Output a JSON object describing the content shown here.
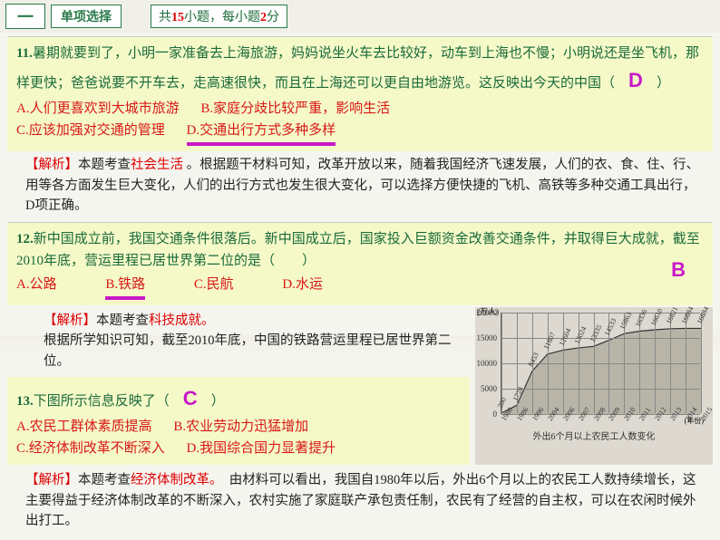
{
  "header": {
    "btn1": "一",
    "btn2": "单项选择",
    "info_pre": "共",
    "info_num": "15",
    "info_mid": "小题，每小题",
    "info_score": "2",
    "info_post": "分"
  },
  "q11": {
    "num": "11.",
    "text": "暑期就要到了，小明一家准备去上海旅游，妈妈说坐火车去比较好，动车到上海也不慢；小明说还是坐飞机，那样更快；爸爸说要不开车去，走高速很快，而且在上海还可以更自由地游览。这反映出今天的中国（",
    "text_close": "）",
    "answer": "D",
    "optA": "A.人们更喜欢到大城市旅游",
    "optB": "B.家庭分歧比较严重，影响生活",
    "optC": "C.应该加强对交通的管理",
    "optD": "D.交通出行方式多种多样"
  },
  "a11": {
    "tag": "【解析】",
    "t1": "本题考查",
    "topic": "社会生活",
    "t2": " 。根据题干材料可知，改革开放以来，随着我国经济飞速发展，人们的衣、食、住、行、用等各方面发生巨大变化，人们的出行方式也发生很大变化，可以选择方便快捷的飞机、高铁等多种交通工具出行，D项正确。"
  },
  "q12": {
    "num": "12.",
    "text": "新中国成立前，我国交通条件很落后。新中国成立后，国家投入巨额资金改善交通条件，并取得巨大成就，截至2010年底，营运里程已居世界第二位的是（　　）",
    "answer": "B",
    "optA": "A.公路",
    "optB": "B.铁路",
    "optC": "C.民航",
    "optD": "D.水运"
  },
  "a12": {
    "tag": "【解析】",
    "t1": "本题考查",
    "topic": "科技成就。",
    "t2": "根据所学知识可知，截至2010年底，中国的铁路营运里程已居世界第二位。"
  },
  "q13": {
    "num": "13.",
    "text": "下图所示信息反映了（",
    "text_close": "）",
    "answer": "C",
    "optA": "A.农民工群体素质提高",
    "optB": "B.农业劳动力迅猛增加",
    "optC": "C.经济体制改革不断深入",
    "optD": "D.我国综合国力显著提升"
  },
  "a13": {
    "tag": "【解析】",
    "t1": "本题考查",
    "topic": "经济体制改革。",
    "t2": "　由材料可以看出，我国自1980年以后，外出6个月以上的农民工人数持续增长，这主要得益于经济体制改革的不断深入，农村实施了家庭联产承包责任制，农民有了经营的自主权，可以在农闲时候外出打工。"
  },
  "chart": {
    "ytitle": "(万人)",
    "xtitle_note": "(年份)",
    "title": "外出6个月以上农民工人数变化",
    "ylim": [
      0,
      20000
    ],
    "ytick": [
      0,
      5000,
      10000,
      15000,
      20000
    ],
    "years": [
      "1980",
      "1986",
      "1996",
      "2004",
      "2006",
      "2007",
      "2008",
      "2009",
      "2010",
      "2011",
      "2012",
      "2013",
      "2014",
      "2015"
    ],
    "values": [
      200,
      1728,
      8453,
      11807,
      12604,
      13024,
      13335,
      14533,
      15863,
      16336,
      16610,
      16821,
      16884,
      16884
    ],
    "line_color": "#333333",
    "fill_color": "#b8b4a8",
    "grid_color": "#888888",
    "bg": "#ddd9d0"
  }
}
